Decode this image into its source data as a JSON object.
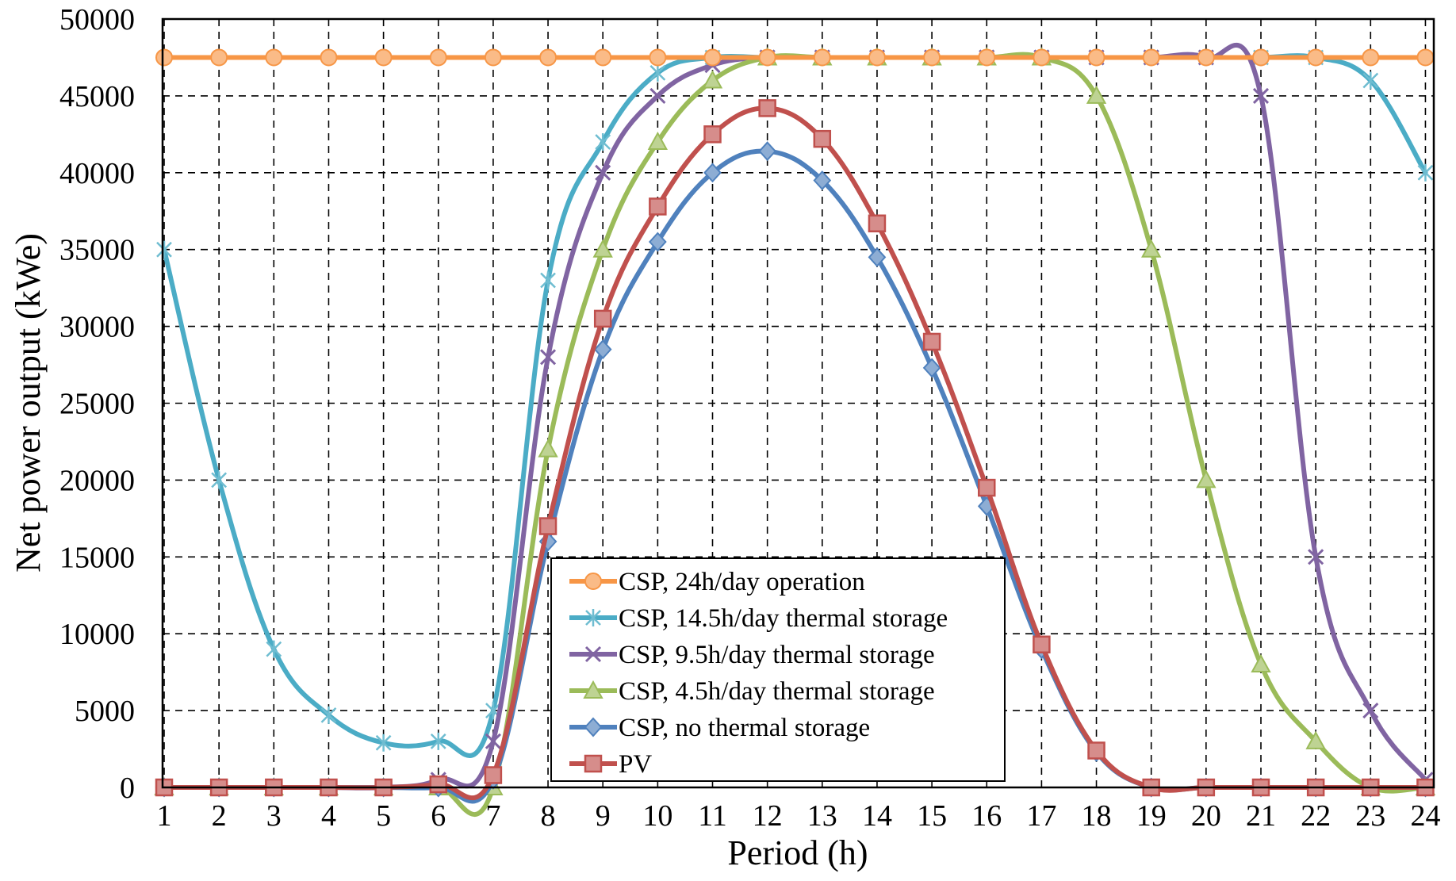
{
  "chart_data": {
    "type": "line",
    "title": "",
    "xlabel": "Period (h)",
    "ylabel": "Net power output (kWe)",
    "xlim": [
      1,
      24
    ],
    "ylim": [
      0,
      50000
    ],
    "x": [
      1,
      2,
      3,
      4,
      5,
      6,
      7,
      8,
      9,
      10,
      11,
      12,
      13,
      14,
      15,
      16,
      17,
      18,
      19,
      20,
      21,
      22,
      23,
      24
    ],
    "x_ticks": [
      "1",
      "2",
      "3",
      "4",
      "5",
      "6",
      "7",
      "8",
      "9",
      "10",
      "11",
      "12",
      "13",
      "14",
      "15",
      "16",
      "17",
      "18",
      "19",
      "20",
      "21",
      "22",
      "23",
      "24"
    ],
    "y_ticks": [
      "0",
      "5000",
      "10000",
      "15000",
      "20000",
      "25000",
      "30000",
      "35000",
      "40000",
      "45000",
      "50000"
    ],
    "grid": true,
    "legend_position": "bottom-center",
    "series": [
      {
        "name": "CSP, 24h/day operation",
        "color": "#F79646",
        "marker": "circle",
        "values": [
          47500,
          47500,
          47500,
          47500,
          47500,
          47500,
          47500,
          47500,
          47500,
          47500,
          47500,
          47500,
          47500,
          47500,
          47500,
          47500,
          47500,
          47500,
          47500,
          47500,
          47500,
          47500,
          47500,
          47500
        ]
      },
      {
        "name": "CSP, 14.5h/day thermal storage",
        "color": "#4BACC6",
        "marker": "asterisk",
        "values": [
          35000,
          20000,
          9000,
          4700,
          2900,
          3000,
          5000,
          33000,
          42000,
          46500,
          47500,
          47500,
          47500,
          47500,
          47500,
          47500,
          47500,
          47500,
          47500,
          47500,
          47500,
          47500,
          46000,
          40000
        ]
      },
      {
        "name": "CSP, 9.5h/day thermal storage",
        "color": "#8064A2",
        "marker": "x",
        "values": [
          0,
          0,
          0,
          0,
          0,
          500,
          3000,
          28000,
          40000,
          45000,
          47000,
          47500,
          47500,
          47500,
          47500,
          47500,
          47500,
          47500,
          47500,
          47500,
          45000,
          15000,
          5000,
          500
        ]
      },
      {
        "name": "CSP, 4.5h/day thermal storage",
        "color": "#9BBB59",
        "marker": "triangle",
        "values": [
          0,
          0,
          0,
          0,
          0,
          0,
          0,
          22000,
          35000,
          42000,
          46000,
          47500,
          47500,
          47500,
          47500,
          47500,
          47500,
          45000,
          35000,
          20000,
          8000,
          3000,
          0,
          0
        ]
      },
      {
        "name": "CSP, no thermal storage",
        "color": "#4F81BD",
        "marker": "diamond",
        "values": [
          0,
          0,
          0,
          0,
          0,
          0,
          500,
          16000,
          28500,
          35500,
          40000,
          41400,
          39500,
          34500,
          27300,
          18300,
          9000,
          2300,
          0,
          0,
          0,
          0,
          0,
          0
        ]
      },
      {
        "name": "PV",
        "color": "#C0504D",
        "marker": "square",
        "values": [
          0,
          0,
          0,
          0,
          0,
          200,
          800,
          17000,
          30500,
          37800,
          42500,
          44200,
          42200,
          36700,
          29000,
          19500,
          9300,
          2400,
          0,
          0,
          0,
          0,
          0,
          0
        ]
      }
    ]
  }
}
